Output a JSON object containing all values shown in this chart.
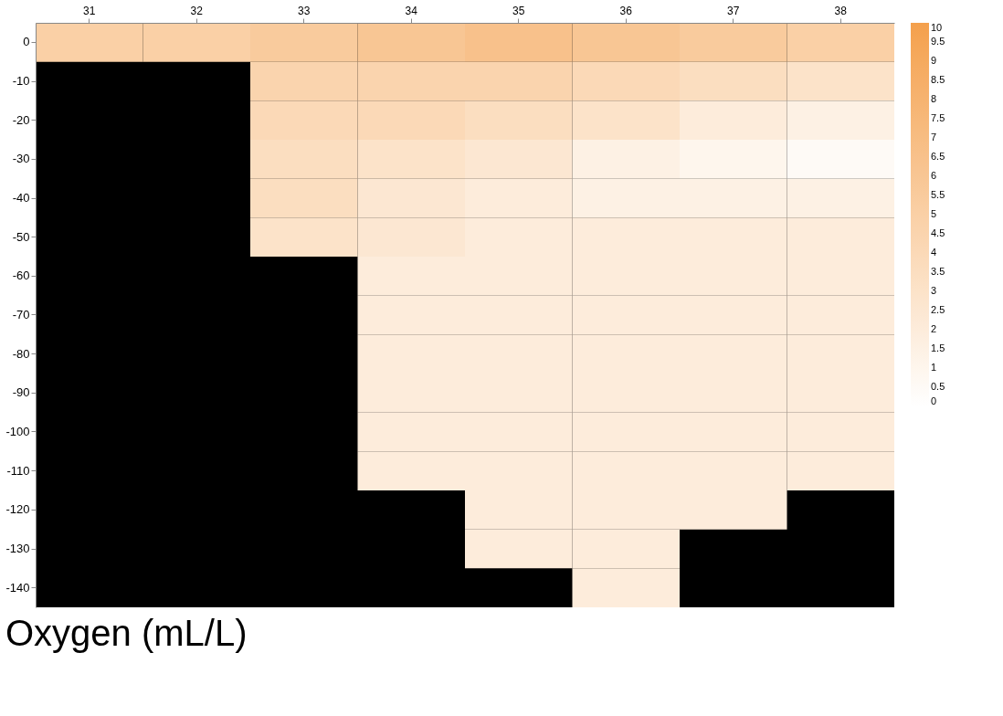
{
  "chart_data": {
    "type": "heatmap",
    "title": "Oxygen (mL/L)",
    "categories": [
      "31",
      "32",
      "33",
      "34",
      "35",
      "36",
      "37",
      "38"
    ],
    "y_categories": [
      "0",
      "-10",
      "-20",
      "-30",
      "-40",
      "-50",
      "-60",
      "-70",
      "-80",
      "-90",
      "-100",
      "-110",
      "-120",
      "-130",
      "-140"
    ],
    "cells": [
      [
        5,
        5,
        5.5,
        6,
        6.5,
        6,
        5.5,
        5
      ],
      [
        null,
        null,
        4.5,
        4.5,
        4.5,
        4,
        3.5,
        3
      ],
      [
        null,
        null,
        4,
        4,
        3.5,
        3,
        2,
        1.5
      ],
      [
        null,
        null,
        3.5,
        3,
        2.5,
        1.5,
        1,
        0.5
      ],
      [
        null,
        null,
        3.5,
        2.5,
        2,
        1.5,
        1.5,
        1.5
      ],
      [
        null,
        null,
        3,
        2.5,
        2,
        2,
        2,
        2
      ],
      [
        null,
        null,
        null,
        2,
        2,
        2,
        2,
        2
      ],
      [
        null,
        null,
        null,
        2,
        2,
        2,
        2,
        2
      ],
      [
        null,
        null,
        null,
        2,
        2,
        2,
        2,
        2
      ],
      [
        null,
        null,
        null,
        2,
        2,
        2,
        2,
        2
      ],
      [
        null,
        null,
        null,
        2,
        2,
        2,
        2,
        2
      ],
      [
        null,
        null,
        null,
        2,
        2,
        2,
        2,
        2
      ],
      [
        null,
        null,
        null,
        null,
        2,
        2,
        2,
        null
      ],
      [
        null,
        null,
        null,
        null,
        2,
        2,
        null,
        null
      ],
      [
        null,
        null,
        null,
        null,
        null,
        2,
        null,
        null
      ]
    ],
    "clim": [
      0,
      10
    ],
    "cticks": [
      0,
      0.5,
      1,
      1.5,
      2,
      2.5,
      3,
      3.5,
      4,
      4.5,
      5,
      5.5,
      6,
      6.5,
      7,
      7.5,
      8,
      8.5,
      9,
      9.5,
      10
    ],
    "colors": [
      "#ffffff",
      "#f4a04c"
    ]
  }
}
